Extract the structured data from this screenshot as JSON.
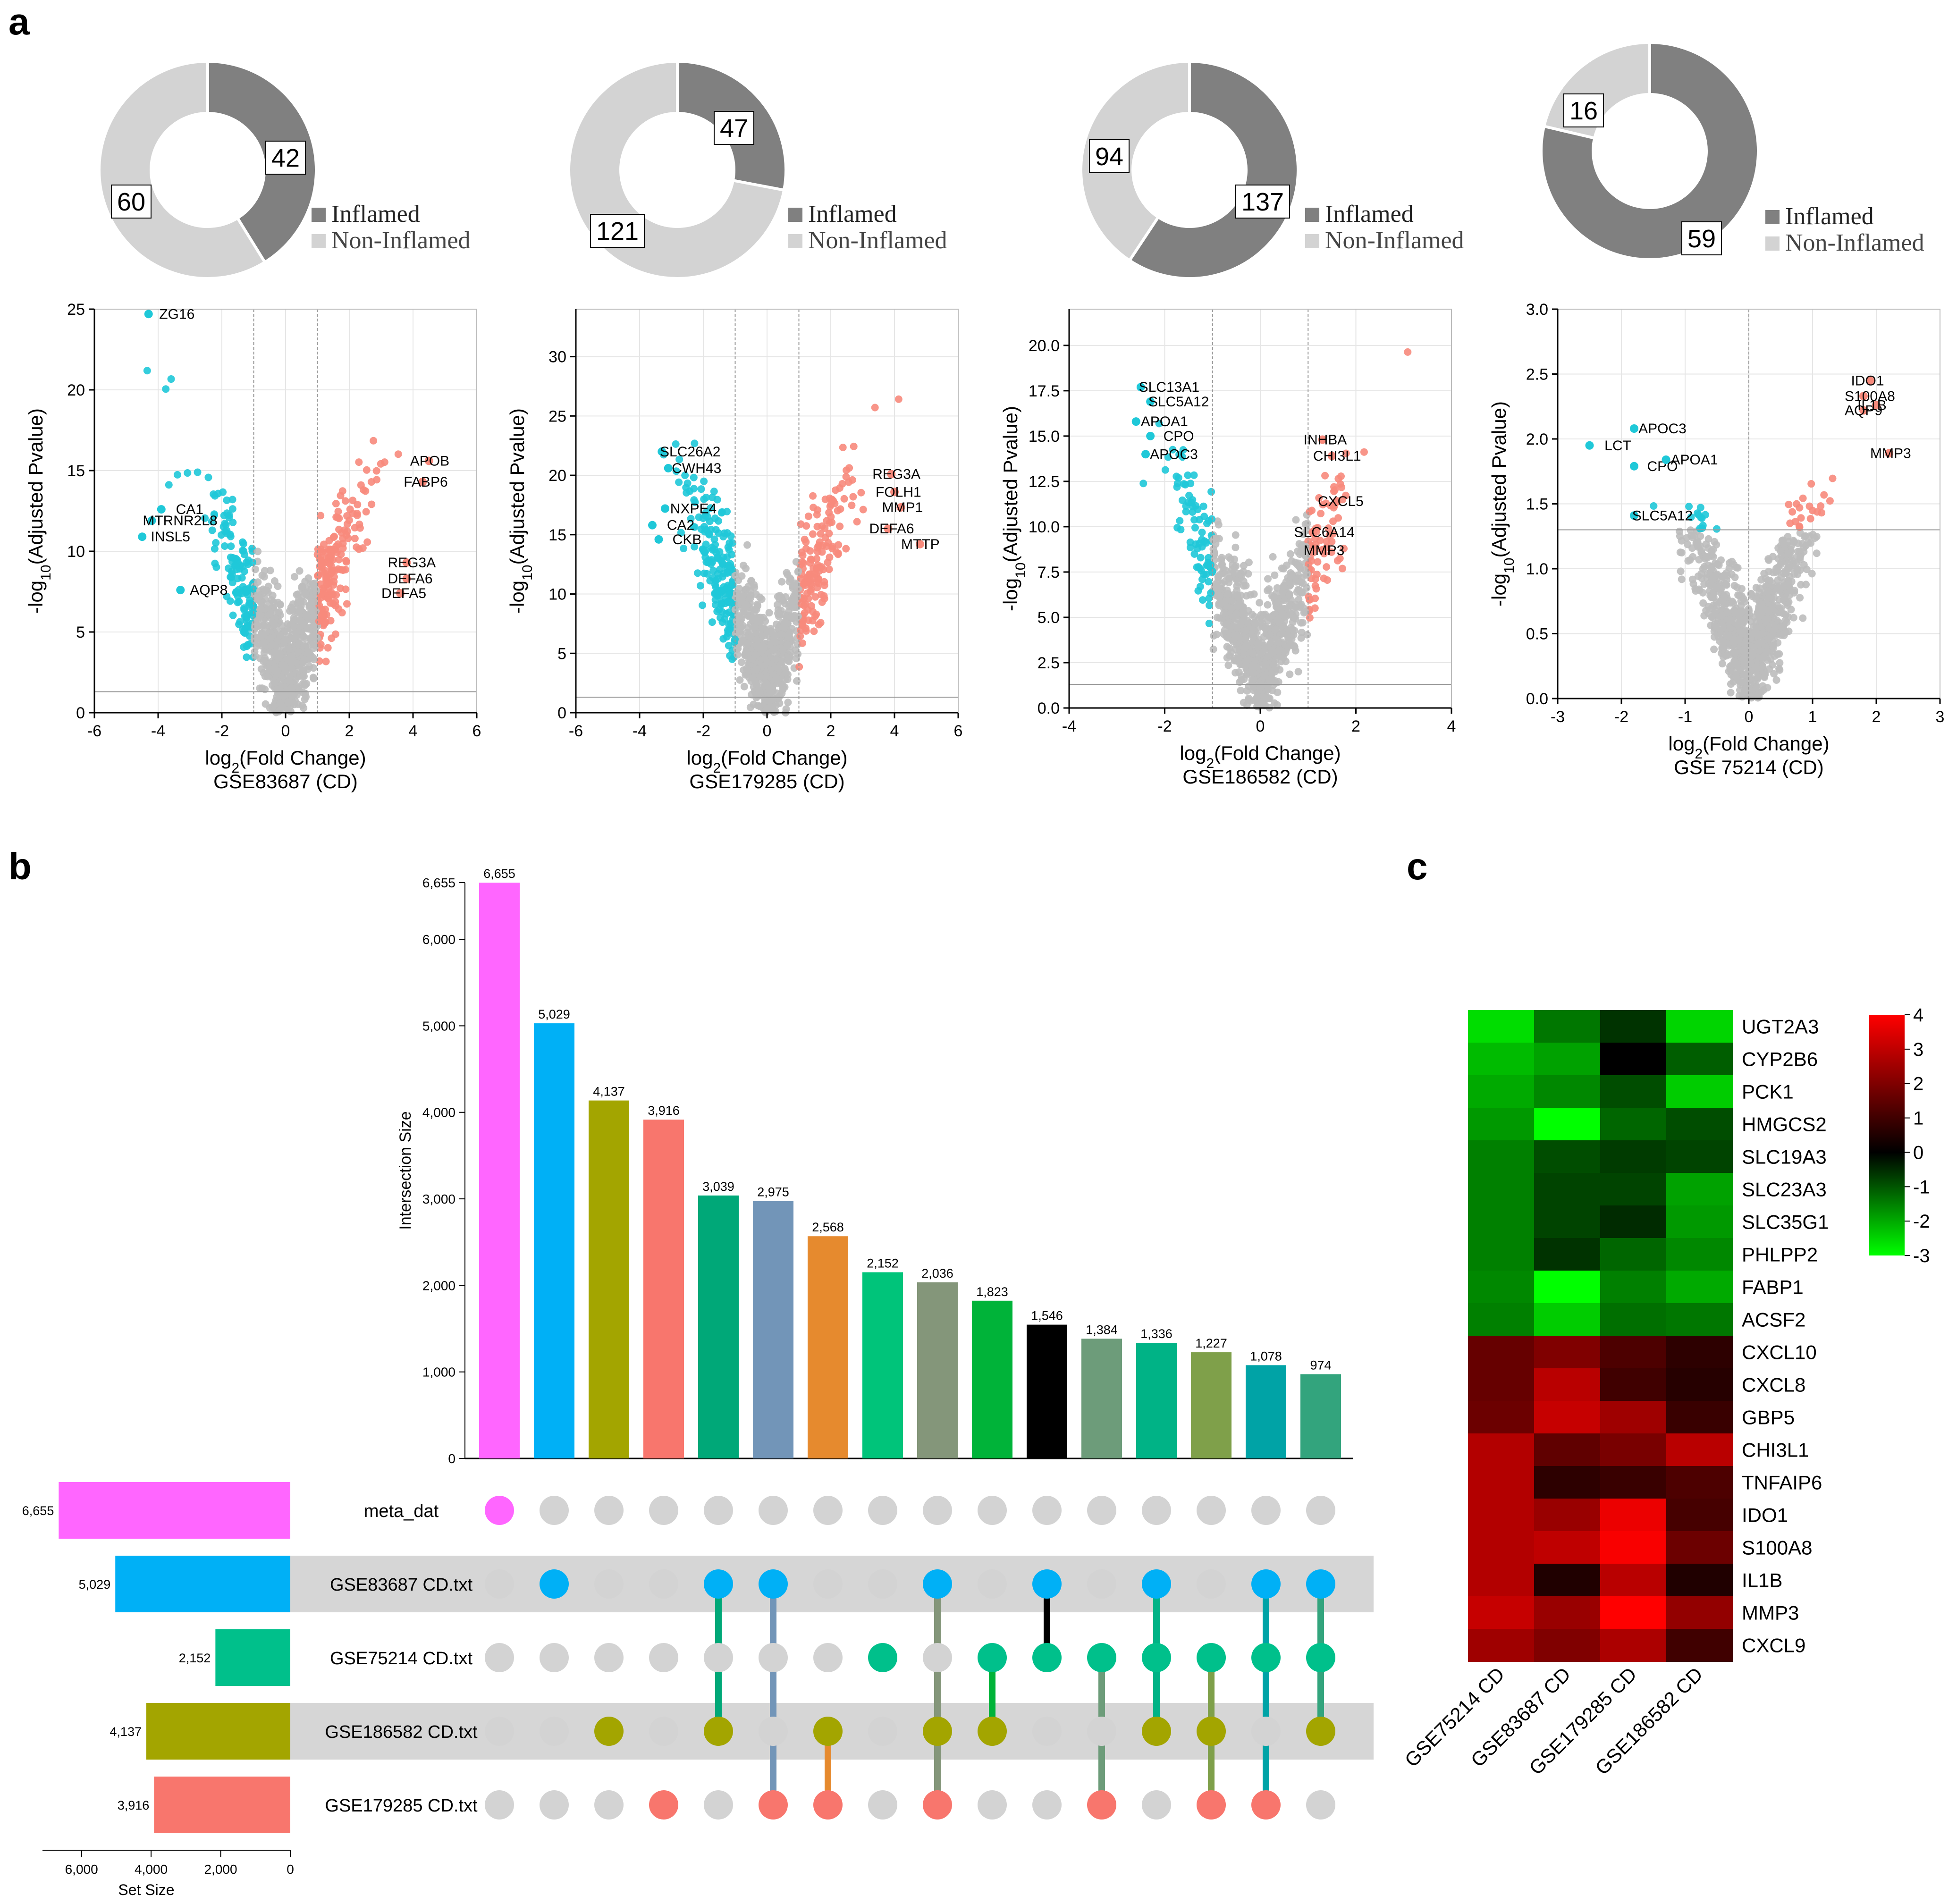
{
  "panel_labels": [
    "a",
    "b",
    "c"
  ],
  "colors": {
    "inflamed": "#808080",
    "non_inflamed": "#d3d3d3",
    "down": "#1fc8d8",
    "up": "#f78a7c",
    "ns": "#bdbdbd",
    "meta_dat": "#ff66ff",
    "GSE83687": "#00b0f6",
    "GSE75214": "#00c08b",
    "GSE186582": "#a3a500",
    "GSE179285": "#f8766d"
  },
  "chart_data": [
    {
      "type": "pie",
      "donut": true,
      "slices": [
        {
          "label": "Inflamed",
          "value": 42
        },
        {
          "label": "Non-Inflamed",
          "value": 60
        }
      ],
      "legend": [
        "Inflamed",
        "Non-Inflamed"
      ]
    },
    {
      "type": "pie",
      "donut": true,
      "slices": [
        {
          "label": "Inflamed",
          "value": 47
        },
        {
          "label": "Non-Inflamed",
          "value": 121
        }
      ],
      "legend": [
        "Inflamed",
        "Non-Inflamed"
      ]
    },
    {
      "type": "pie",
      "donut": true,
      "slices": [
        {
          "label": "Inflamed",
          "value": 137
        },
        {
          "label": "Non-Inflamed",
          "value": 94
        }
      ],
      "legend": [
        "Inflamed",
        "Non-Inflamed"
      ]
    },
    {
      "type": "pie",
      "donut": true,
      "slices": [
        {
          "label": "Inflamed",
          "value": 59
        },
        {
          "label": "Non-Inflamed",
          "value": 16
        }
      ],
      "legend": [
        "Inflamed",
        "Non-Inflamed"
      ]
    },
    {
      "type": "scatter",
      "subtitle": "GSE83687 (CD)",
      "xlim": [
        -6,
        6
      ],
      "ylim": [
        0,
        25
      ],
      "xticks": [
        -6,
        -4,
        -2,
        0,
        2,
        4,
        6
      ],
      "yticks": [
        0,
        5,
        10,
        15,
        20,
        25
      ],
      "vlines": [
        -1,
        1
      ],
      "hline": 1.3,
      "labels": [
        {
          "text": "ZG16",
          "x": -4.3,
          "y": 24.7,
          "group": "down"
        },
        {
          "text": "CA1",
          "x": -3.9,
          "y": 12.6,
          "group": "down"
        },
        {
          "text": "MTRNR2L8",
          "x": -4.2,
          "y": 11.9,
          "group": "down"
        },
        {
          "text": "INSL5",
          "x": -4.5,
          "y": 10.9,
          "group": "down"
        },
        {
          "text": "AQP8",
          "x": -3.3,
          "y": 7.6,
          "group": "down"
        },
        {
          "text": "APOB",
          "x": 4.5,
          "y": 15.6,
          "group": "up"
        },
        {
          "text": "FABP6",
          "x": 4.3,
          "y": 14.3,
          "group": "up"
        },
        {
          "text": "REG3A",
          "x": 3.8,
          "y": 9.3,
          "group": "up"
        },
        {
          "text": "DEFA6",
          "x": 3.8,
          "y": 8.3,
          "group": "up"
        },
        {
          "text": "DEFA5",
          "x": 3.6,
          "y": 7.4,
          "group": "up"
        }
      ]
    },
    {
      "type": "scatter",
      "subtitle": "GSE179285 (CD)",
      "xlim": [
        -6,
        6
      ],
      "ylim": [
        0,
        34
      ],
      "xticks": [
        -6,
        -4,
        -2,
        0,
        2,
        4,
        6
      ],
      "yticks": [
        0,
        5,
        10,
        15,
        20,
        25,
        30
      ],
      "vlines": [
        -1,
        1
      ],
      "hline": 1.3,
      "labels": [
        {
          "text": "SLC26A2",
          "x": -3.3,
          "y": 22.0,
          "group": "down"
        },
        {
          "text": "CWH43",
          "x": -3.1,
          "y": 20.6,
          "group": "down"
        },
        {
          "text": "NXPE4",
          "x": -3.2,
          "y": 17.2,
          "group": "down"
        },
        {
          "text": "CA2",
          "x": -3.6,
          "y": 15.8,
          "group": "down"
        },
        {
          "text": "CKB",
          "x": -3.4,
          "y": 14.6,
          "group": "down"
        },
        {
          "text": "REG3A",
          "x": 3.9,
          "y": 20.1,
          "group": "up"
        },
        {
          "text": "FOLH1",
          "x": 4.0,
          "y": 18.6,
          "group": "up"
        },
        {
          "text": "MMP1",
          "x": 4.2,
          "y": 17.3,
          "group": "up"
        },
        {
          "text": "DEFA6",
          "x": 3.8,
          "y": 15.5,
          "group": "up"
        },
        {
          "text": "MTTP",
          "x": 4.8,
          "y": 14.2,
          "group": "up"
        }
      ]
    },
    {
      "type": "scatter",
      "subtitle": "GSE186582 (CD)",
      "xlim": [
        -4,
        4
      ],
      "ylim": [
        0,
        22
      ],
      "xticks": [
        -4,
        -2,
        0,
        2,
        4
      ],
      "yticks": [
        0.0,
        2.5,
        5.0,
        7.5,
        10.0,
        12.5,
        15.0,
        17.5,
        20.0
      ],
      "vlines": [
        -1,
        1
      ],
      "hline": 1.3,
      "labels": [
        {
          "text": "SLC13A1",
          "x": -2.5,
          "y": 17.7,
          "group": "down"
        },
        {
          "text": "SLC5A12",
          "x": -2.3,
          "y": 16.9,
          "group": "down"
        },
        {
          "text": "APOA1",
          "x": -2.6,
          "y": 15.8,
          "group": "down"
        },
        {
          "text": "CPO",
          "x": -2.3,
          "y": 15.0,
          "group": "down"
        },
        {
          "text": "APOC3",
          "x": -2.4,
          "y": 14.0,
          "group": "down"
        },
        {
          "text": "INHBA",
          "x": 1.3,
          "y": 14.8,
          "group": "up"
        },
        {
          "text": "CHI3L1",
          "x": 1.5,
          "y": 13.9,
          "group": "up"
        },
        {
          "text": "CXCL5",
          "x": 1.6,
          "y": 11.4,
          "group": "up"
        },
        {
          "text": "SLC6A14",
          "x": 1.1,
          "y": 9.7,
          "group": "up"
        },
        {
          "text": "MMP3",
          "x": 1.3,
          "y": 8.7,
          "group": "up"
        }
      ]
    },
    {
      "type": "scatter",
      "subtitle": "GSE 75214 (CD)",
      "xlim": [
        -3,
        3
      ],
      "ylim": [
        0,
        3
      ],
      "xticks": [
        -3,
        -2,
        -1,
        0,
        1,
        2,
        3
      ],
      "yticks": [
        0.0,
        0.5,
        1.0,
        1.5,
        2.0,
        2.5,
        3.0
      ],
      "vlines": [
        0
      ],
      "hline": 1.3,
      "labels": [
        {
          "text": "APOC3",
          "x": -1.8,
          "y": 2.08,
          "group": "down"
        },
        {
          "text": "LCT",
          "x": -2.5,
          "y": 1.95,
          "group": "down"
        },
        {
          "text": "CPO",
          "x": -1.8,
          "y": 1.79,
          "group": "down"
        },
        {
          "text": "APOA1",
          "x": -1.3,
          "y": 1.84,
          "group": "down"
        },
        {
          "text": "SLC5A12",
          "x": -1.8,
          "y": 1.41,
          "group": "down"
        },
        {
          "text": "IDO1",
          "x": 1.9,
          "y": 2.45,
          "group": "up"
        },
        {
          "text": "S100A8",
          "x": 1.8,
          "y": 2.33,
          "group": "up"
        },
        {
          "text": "AQP9",
          "x": 1.8,
          "y": 2.22,
          "group": "up"
        },
        {
          "text": "IL1B",
          "x": 2.0,
          "y": 2.26,
          "group": "up"
        },
        {
          "text": "MMP3",
          "x": 2.2,
          "y": 1.89,
          "group": "up"
        }
      ]
    },
    {
      "type": "bar",
      "name": "upset-intersections",
      "ylabel": "Intersection Size",
      "ylim": [
        0,
        6655
      ],
      "yticks": [
        "0",
        "1,000",
        "2,000",
        "3,000",
        "4,000",
        "5,000",
        "6,000",
        "6,655"
      ],
      "values": [
        6655,
        5029,
        4137,
        3916,
        3039,
        2975,
        2568,
        2152,
        2036,
        1823,
        1546,
        1384,
        1336,
        1227,
        1078,
        974
      ],
      "value_labels": [
        "6,655",
        "5,029",
        "4,137",
        "3,916",
        "3,039",
        "2,975",
        "2,568",
        "2,152",
        "2,036",
        "1,823",
        "1,546",
        "1,384",
        "1,336",
        "1,227",
        "1,078",
        "974"
      ],
      "colors": [
        "#ff66ff",
        "#00b0f6",
        "#a3a500",
        "#f8766d",
        "#00a878",
        "#7295b8",
        "#e68a2e",
        "#00c47a",
        "#84967a",
        "#00b339",
        "#000000",
        "#6d9c7a",
        "#00b386",
        "#7fa04a",
        "#00a3a6",
        "#33a47d"
      ],
      "sets": [
        "meta_dat",
        "GSE83687 CD.txt",
        "GSE75214 CD.txt",
        "GSE186582 CD.txt",
        "GSE179285 CD.txt"
      ],
      "membership": [
        [
          0
        ],
        [
          1
        ],
        [
          3
        ],
        [
          4
        ],
        [
          1,
          3
        ],
        [
          1,
          4
        ],
        [
          3,
          4
        ],
        [
          2
        ],
        [
          1,
          3,
          4
        ],
        [
          2,
          3
        ],
        [
          1,
          2
        ],
        [
          2,
          4
        ],
        [
          1,
          2,
          3
        ],
        [
          2,
          3,
          4
        ],
        [
          1,
          2,
          4
        ],
        [
          1,
          2,
          3
        ]
      ],
      "set_sizes": [
        6655,
        5029,
        2152,
        4137,
        3916
      ],
      "set_size_labels": [
        "6,655",
        "5,029",
        "2,152",
        "4,137",
        "3,916"
      ],
      "set_size_xlabel": "Set Size",
      "set_size_ticks": [
        "6,000",
        "4,000",
        "2,000",
        "0"
      ]
    },
    {
      "type": "heatmap",
      "genes": [
        "UGT2A3",
        "CYP2B6",
        "PCK1",
        "HMGCS2",
        "SLC19A3",
        "SLC23A3",
        "SLC35G1",
        "PHLPP2",
        "FABP1",
        "ACSF2",
        "CXCL10",
        "CXCL8",
        "GBP5",
        "CHI3L1",
        "TNFAIP6",
        "IDO1",
        "S100A8",
        "IL1B",
        "MMP3",
        "CXCL9"
      ],
      "columns": [
        "GSE75214 CD",
        "GSE83687 CD",
        "GSE179285 CD",
        "GSE186582 CD"
      ],
      "values": [
        [
          -2.6,
          -1.4,
          -0.6,
          -2.5
        ],
        [
          -2.2,
          -1.9,
          0.0,
          -1.1
        ],
        [
          -2.0,
          -1.6,
          -0.9,
          -2.4
        ],
        [
          -1.8,
          -3.2,
          -1.2,
          -0.9
        ],
        [
          -1.5,
          -0.9,
          -0.7,
          -0.8
        ],
        [
          -1.5,
          -0.8,
          -0.8,
          -1.9
        ],
        [
          -1.5,
          -0.8,
          -0.5,
          -1.8
        ],
        [
          -1.5,
          -0.6,
          -1.2,
          -1.6
        ],
        [
          -1.6,
          -3.4,
          -1.5,
          -2.0
        ],
        [
          -1.5,
          -2.4,
          -1.3,
          -1.4
        ],
        [
          1.6,
          2.0,
          1.2,
          0.7
        ],
        [
          1.6,
          2.9,
          1.0,
          0.6
        ],
        [
          1.7,
          3.1,
          2.5,
          0.9
        ],
        [
          2.8,
          1.5,
          1.9,
          2.9
        ],
        [
          2.8,
          0.7,
          0.9,
          1.2
        ],
        [
          2.8,
          2.4,
          3.7,
          1.1
        ],
        [
          2.8,
          3.0,
          3.9,
          1.7
        ],
        [
          2.8,
          0.5,
          2.9,
          0.5
        ],
        [
          3.1,
          2.4,
          4.0,
          2.3
        ],
        [
          2.5,
          2.0,
          2.7,
          1.0
        ]
      ],
      "colorbar_ticks": [
        "4",
        "3",
        "2",
        "1",
        "0",
        "-1",
        "-2",
        "-3"
      ],
      "vmin": -3,
      "vmax": 4
    }
  ],
  "volcano_axes": {
    "xlabel": "log2(Fold Change)",
    "ylabel": "-log10(Adjusted Pvalue)"
  }
}
